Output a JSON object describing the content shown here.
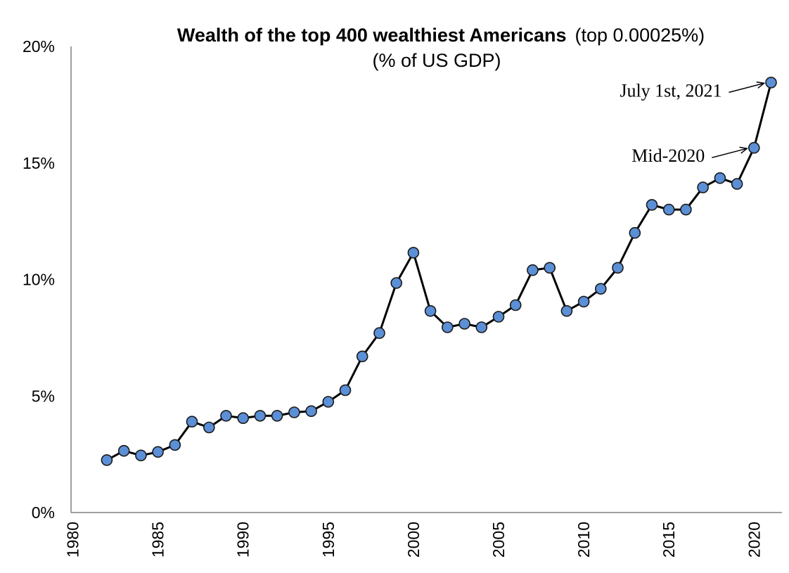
{
  "chart_data": {
    "type": "line",
    "title": "Wealth of the top 400 wealthiest Americans",
    "title_suffix": "(top 0.00025%)",
    "subtitle": "(% of US GDP)",
    "xlabel": "",
    "ylabel": "",
    "xlim": [
      1980,
      2021
    ],
    "ylim": [
      0,
      20
    ],
    "x_ticks": [
      1980,
      1985,
      1990,
      1995,
      2000,
      2005,
      2010,
      2015,
      2020
    ],
    "x_tick_labels": [
      "1980",
      "1985",
      "1990",
      "1995",
      "2000",
      "2005",
      "2010",
      "2015",
      "2020"
    ],
    "y_ticks": [
      0,
      5,
      10,
      15,
      20
    ],
    "y_tick_labels": [
      "0%",
      "5%",
      "10%",
      "15%",
      "20%"
    ],
    "grid": false,
    "series": [
      {
        "name": "Wealth of top 400 (% of US GDP)",
        "color": "#5b8fd6",
        "x": [
          1982,
          1983,
          1984,
          1985,
          1986,
          1987,
          1988,
          1989,
          1990,
          1991,
          1992,
          1993,
          1994,
          1995,
          1996,
          1997,
          1998,
          1999,
          2000,
          2001,
          2002,
          2003,
          2004,
          2005,
          2006,
          2007,
          2008,
          2009,
          2010,
          2011,
          2012,
          2013,
          2014,
          2015,
          2016,
          2017,
          2018,
          2019,
          2020,
          2021
        ],
        "values": [
          2.25,
          2.65,
          2.45,
          2.6,
          2.9,
          3.9,
          3.65,
          4.15,
          4.05,
          4.15,
          4.15,
          4.3,
          4.35,
          4.75,
          5.25,
          6.7,
          7.7,
          9.85,
          11.15,
          8.65,
          7.95,
          8.1,
          7.95,
          8.4,
          8.9,
          10.4,
          10.5,
          8.65,
          9.05,
          9.6,
          10.5,
          12.0,
          13.2,
          13.0,
          13.0,
          13.95,
          14.35,
          14.1,
          15.65,
          18.45
        ]
      }
    ],
    "annotations": [
      {
        "text": "July 1st, 2021",
        "x": 2021,
        "y": 18.45
      },
      {
        "text": "Mid-2020",
        "x": 2020,
        "y": 15.65
      }
    ]
  }
}
